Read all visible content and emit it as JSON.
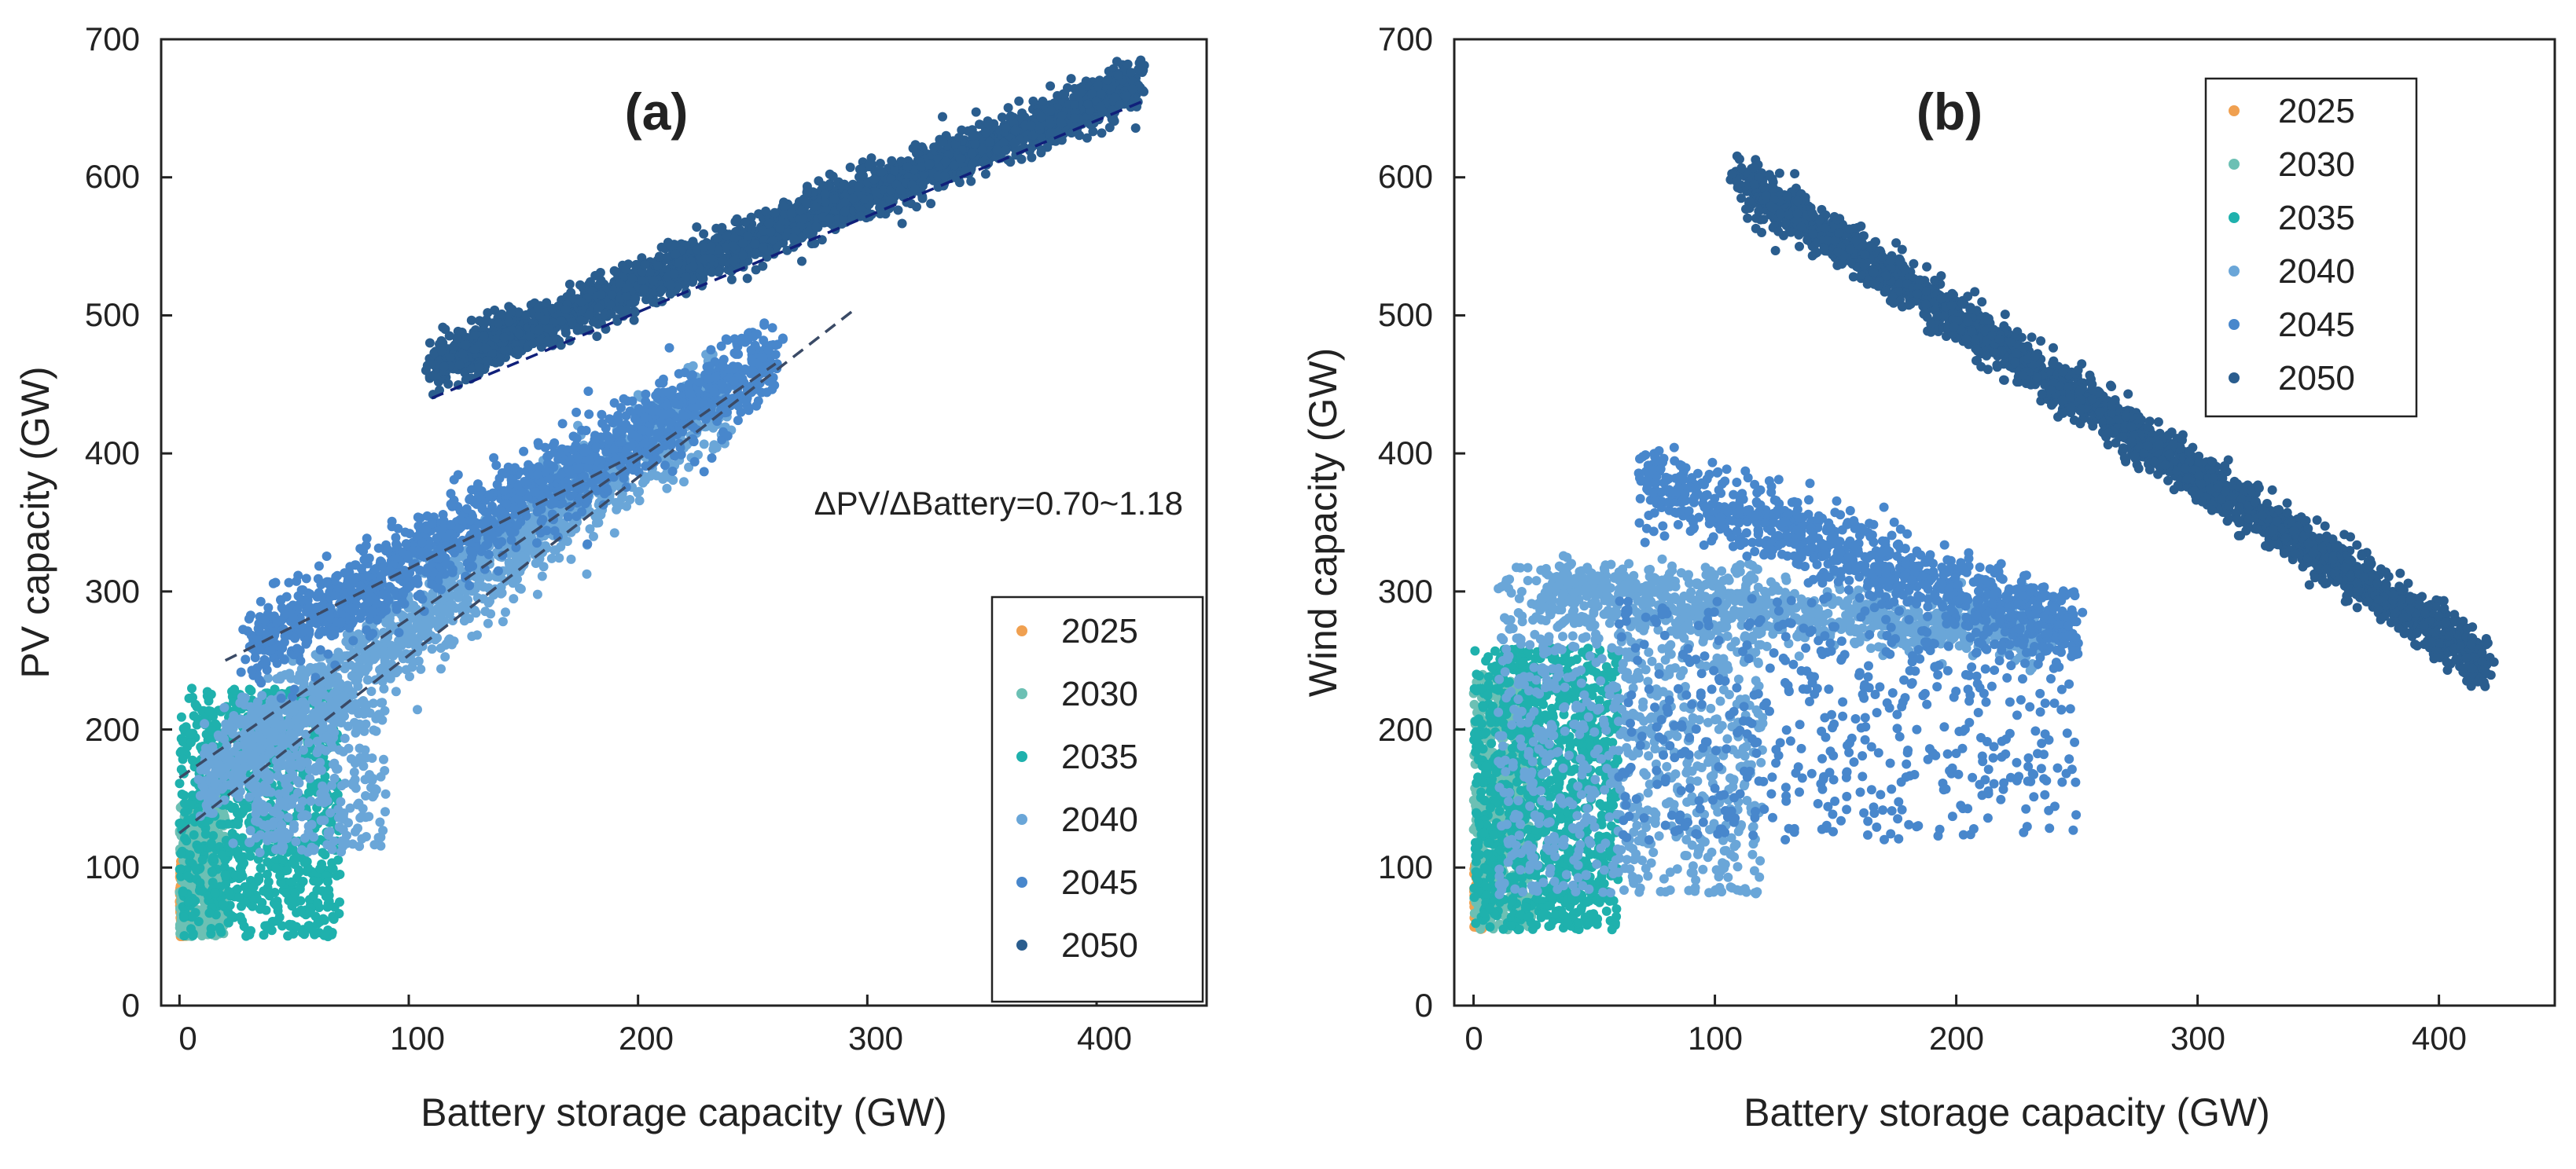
{
  "chart_data": [
    {
      "type": "scatter",
      "panel": "a",
      "title": "(a)",
      "xlabel": "Battery storage capacity (GW)",
      "ylabel": "PV capacity (GW)",
      "xlim": [
        -8,
        448
      ],
      "ylim": [
        0,
        700
      ],
      "xticks": [
        "0",
        "100",
        "200",
        "300",
        "400"
      ],
      "yticks": [
        "0",
        "100",
        "200",
        "300",
        "400",
        "500",
        "600",
        "700"
      ],
      "annotation": "ΔPV/ΔBattery=0.70~1.18",
      "legend_position": "bottom-right",
      "legend": [
        "2025",
        "2030",
        "2035",
        "2040",
        "2045",
        "2050"
      ],
      "series": [
        {
          "name": "2025",
          "color": "#f0a050",
          "clusters": [
            {
              "xmin": 0,
              "xmax": 4,
              "ymin": 50,
              "ymax": 105,
              "n": 160
            }
          ]
        },
        {
          "name": "2030",
          "color": "#6cc0b4",
          "clusters": [
            {
              "xmin": 0,
              "xmax": 20,
              "ymin": 50,
              "ymax": 150,
              "n": 420
            }
          ]
        },
        {
          "name": "2035",
          "color": "#1fb1ad",
          "clusters": [
            {
              "xmin": 0,
              "xmax": 70,
              "ymin": 50,
              "ymax": 230,
              "n": 900
            }
          ]
        },
        {
          "name": "2040",
          "color": "#6aa6d8",
          "clusters": [
            {
              "band": true,
              "x0": 10,
              "x1": 240,
              "ya": 160,
              "yb": 450,
              "spread": 32,
              "n": 1500
            },
            {
              "xmin": 30,
              "xmax": 90,
              "ymin": 110,
              "ymax": 220,
              "n": 300
            }
          ]
        },
        {
          "name": "2045",
          "color": "#4887cc",
          "clusters": [
            {
              "band": true,
              "x0": 30,
              "x1": 260,
              "ya": 255,
              "yb": 470,
              "spread": 28,
              "n": 1500
            }
          ]
        },
        {
          "name": "2050",
          "color": "#2a5d8e",
          "clusters": [
            {
              "band": true,
              "x0": 110,
              "x1": 420,
              "ya": 462,
              "yb": 668,
              "spread": 16,
              "n": 2600
            }
          ]
        }
      ],
      "fit_lines": [
        {
          "x": [
            0,
            295
          ],
          "y": [
            125,
            505
          ]
        },
        {
          "x": [
            0,
            260
          ],
          "y": [
            165,
            465
          ]
        },
        {
          "x": [
            20,
            200
          ],
          "y": [
            250,
            400
          ]
        },
        {
          "x": [
            110,
            420
          ],
          "y": [
            440,
            655
          ]
        }
      ]
    },
    {
      "type": "scatter",
      "panel": "b",
      "title": "(b)",
      "xlabel": "Battery storage capacity (GW)",
      "ylabel": "Wind capacity (GW)",
      "xlim": [
        -8,
        448
      ],
      "ylim": [
        0,
        700
      ],
      "xticks": [
        "0",
        "100",
        "200",
        "300",
        "400"
      ],
      "yticks": [
        "0",
        "100",
        "200",
        "300",
        "400",
        "500",
        "600",
        "700"
      ],
      "legend_position": "top-right",
      "legend": [
        "2025",
        "2030",
        "2035",
        "2040",
        "2045",
        "2050"
      ],
      "series": [
        {
          "name": "2025",
          "color": "#f0a050",
          "clusters": [
            {
              "xmin": 0,
              "xmax": 4,
              "ymin": 55,
              "ymax": 105,
              "n": 140
            }
          ]
        },
        {
          "name": "2030",
          "color": "#6cc0b4",
          "clusters": [
            {
              "xmin": 0,
              "xmax": 25,
              "ymin": 55,
              "ymax": 240,
              "n": 500
            }
          ]
        },
        {
          "name": "2035",
          "color": "#1fb1ad",
          "clusters": [
            {
              "xmin": 0,
              "xmax": 60,
              "ymin": 55,
              "ymax": 260,
              "n": 1100
            }
          ]
        },
        {
          "name": "2040",
          "color": "#6aa6d8",
          "clusters": [
            {
              "xmin": 10,
              "xmax": 120,
              "ymin": 80,
              "ymax": 320,
              "n": 900
            },
            {
              "band": true,
              "x0": 30,
              "x1": 240,
              "ya": 300,
              "yb": 270,
              "spread": 22,
              "n": 800
            }
          ]
        },
        {
          "name": "2045",
          "color": "#4887cc",
          "clusters": [
            {
              "band": true,
              "x0": 70,
              "x1": 250,
              "ya": 380,
              "yb": 270,
              "spread": 26,
              "n": 900
            },
            {
              "xmin": 60,
              "xmax": 250,
              "ymin": 120,
              "ymax": 300,
              "n": 550
            }
          ]
        },
        {
          "name": "2050",
          "color": "#2a5d8e",
          "clusters": [
            {
              "band": true,
              "x0": 110,
              "x1": 420,
              "ya": 600,
              "yb": 248,
              "spread": 16,
              "n": 2600
            }
          ]
        }
      ]
    }
  ]
}
